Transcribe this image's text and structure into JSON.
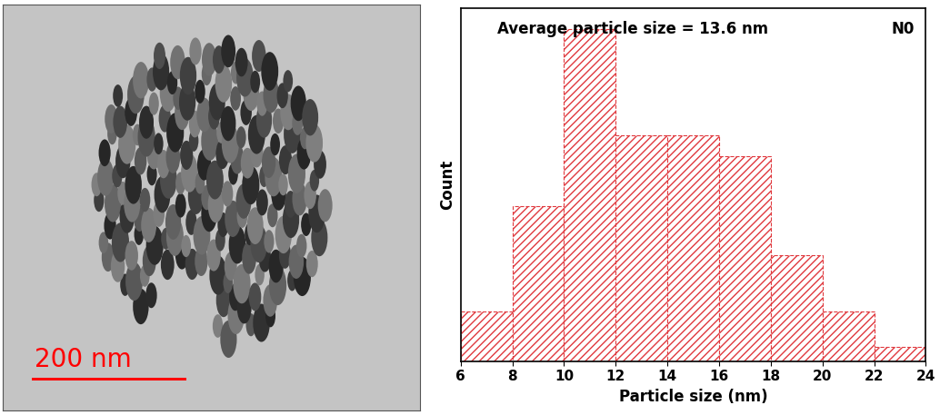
{
  "image": {
    "scale_bar": {
      "label": "200 nm",
      "color": "#ff0000"
    }
  },
  "chart_data": {
    "type": "histogram",
    "annotations": [
      "Average particle size = 13.6 nm",
      "N0"
    ],
    "x_label": "Particle size (nm)",
    "y_label": "Count",
    "bins": [
      6,
      8,
      10,
      12,
      14,
      16,
      18,
      20,
      22,
      24
    ],
    "counts": [
      7,
      22,
      47,
      32,
      32,
      29,
      15,
      7,
      2
    ],
    "color": "#e0393e",
    "xlim": [
      6,
      24
    ],
    "xticks": [
      6,
      8,
      10,
      12,
      14,
      16,
      18,
      20,
      22,
      24
    ],
    "ylim": [
      0,
      50
    ],
    "yticks": [],
    "tick_labels": "x"
  }
}
